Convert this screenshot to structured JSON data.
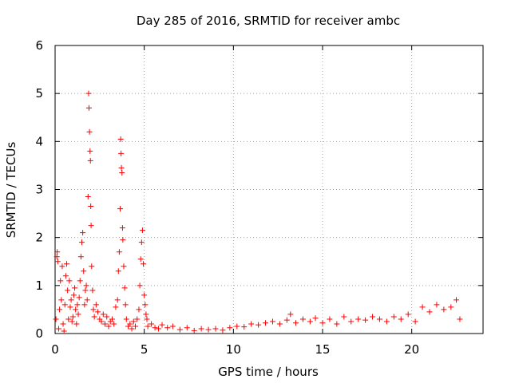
{
  "chart_data": {
    "type": "scatter",
    "title": "Day 285 of 2016, SRMTID for receiver ambc",
    "xlabel": "GPS time / hours",
    "ylabel": "SRMTID / TECUs",
    "xlim": [
      0,
      24
    ],
    "ylim": [
      0,
      6
    ],
    "xticks": [
      0,
      5,
      10,
      15,
      20
    ],
    "yticks": [
      0,
      1,
      2,
      3,
      4,
      5,
      6
    ],
    "grid": true,
    "marker": "+",
    "color": "#ff0000",
    "series": [
      {
        "name": "SRMTID",
        "points": [
          [
            0.05,
            0.3
          ],
          [
            0.1,
            1.6
          ],
          [
            0.12,
            1.7
          ],
          [
            0.15,
            1.5
          ],
          [
            0.2,
            0.1
          ],
          [
            0.25,
            0.5
          ],
          [
            0.3,
            1.1
          ],
          [
            0.35,
            0.7
          ],
          [
            0.4,
            1.4
          ],
          [
            0.45,
            0.2
          ],
          [
            0.5,
            0.05
          ],
          [
            0.55,
            0.6
          ],
          [
            0.6,
            1.2
          ],
          [
            0.65,
            1.45
          ],
          [
            0.7,
            0.9
          ],
          [
            0.75,
            0.3
          ],
          [
            0.8,
            1.1
          ],
          [
            0.85,
            0.55
          ],
          [
            0.9,
            0.7
          ],
          [
            0.95,
            0.25
          ],
          [
            1.0,
            0.35
          ],
          [
            1.05,
            0.8
          ],
          [
            1.1,
            0.95
          ],
          [
            1.15,
            0.5
          ],
          [
            1.2,
            0.2
          ],
          [
            1.25,
            0.6
          ],
          [
            1.3,
            0.4
          ],
          [
            1.35,
            0.75
          ],
          [
            1.4,
            1.1
          ],
          [
            1.45,
            1.6
          ],
          [
            1.5,
            1.9
          ],
          [
            1.55,
            2.1
          ],
          [
            1.6,
            1.3
          ],
          [
            1.65,
            0.6
          ],
          [
            1.7,
            0.9
          ],
          [
            1.75,
            1.0
          ],
          [
            1.8,
            0.7
          ],
          [
            1.85,
            2.85
          ],
          [
            1.88,
            5.0
          ],
          [
            1.9,
            4.7
          ],
          [
            1.93,
            4.2
          ],
          [
            1.96,
            3.8
          ],
          [
            1.98,
            3.6
          ],
          [
            2.0,
            2.65
          ],
          [
            2.02,
            2.25
          ],
          [
            2.05,
            1.4
          ],
          [
            2.1,
            0.9
          ],
          [
            2.15,
            0.5
          ],
          [
            2.2,
            0.35
          ],
          [
            2.3,
            0.6
          ],
          [
            2.4,
            0.45
          ],
          [
            2.5,
            0.3
          ],
          [
            2.6,
            0.25
          ],
          [
            2.7,
            0.4
          ],
          [
            2.8,
            0.2
          ],
          [
            2.9,
            0.35
          ],
          [
            3.0,
            0.15
          ],
          [
            3.1,
            0.25
          ],
          [
            3.2,
            0.3
          ],
          [
            3.3,
            0.2
          ],
          [
            3.4,
            0.55
          ],
          [
            3.5,
            0.7
          ],
          [
            3.55,
            1.3
          ],
          [
            3.6,
            1.7
          ],
          [
            3.65,
            2.6
          ],
          [
            3.68,
            4.05
          ],
          [
            3.7,
            3.75
          ],
          [
            3.72,
            3.45
          ],
          [
            3.75,
            3.35
          ],
          [
            3.78,
            2.2
          ],
          [
            3.8,
            1.95
          ],
          [
            3.85,
            1.4
          ],
          [
            3.9,
            0.95
          ],
          [
            3.95,
            0.6
          ],
          [
            4.0,
            0.3
          ],
          [
            4.1,
            0.15
          ],
          [
            4.2,
            0.2
          ],
          [
            4.3,
            0.1
          ],
          [
            4.4,
            0.25
          ],
          [
            4.5,
            0.15
          ],
          [
            4.6,
            0.3
          ],
          [
            4.7,
            0.5
          ],
          [
            4.75,
            1.0
          ],
          [
            4.8,
            1.55
          ],
          [
            4.85,
            1.9
          ],
          [
            4.9,
            2.15
          ],
          [
            4.95,
            1.45
          ],
          [
            5.0,
            0.8
          ],
          [
            5.05,
            0.6
          ],
          [
            5.1,
            0.4
          ],
          [
            5.15,
            0.3
          ],
          [
            5.2,
            0.15
          ],
          [
            5.4,
            0.2
          ],
          [
            5.6,
            0.12
          ],
          [
            5.8,
            0.1
          ],
          [
            6.0,
            0.18
          ],
          [
            6.3,
            0.12
          ],
          [
            6.6,
            0.15
          ],
          [
            7.0,
            0.08
          ],
          [
            7.4,
            0.12
          ],
          [
            7.8,
            0.06
          ],
          [
            8.2,
            0.1
          ],
          [
            8.6,
            0.08
          ],
          [
            9.0,
            0.1
          ],
          [
            9.4,
            0.07
          ],
          [
            9.8,
            0.12
          ],
          [
            10.2,
            0.15
          ],
          [
            10.6,
            0.14
          ],
          [
            11.0,
            0.2
          ],
          [
            11.4,
            0.18
          ],
          [
            11.8,
            0.22
          ],
          [
            12.2,
            0.25
          ],
          [
            12.6,
            0.2
          ],
          [
            13.0,
            0.28
          ],
          [
            13.2,
            0.4
          ],
          [
            13.5,
            0.22
          ],
          [
            13.9,
            0.3
          ],
          [
            14.3,
            0.25
          ],
          [
            14.6,
            0.32
          ],
          [
            15.0,
            0.22
          ],
          [
            15.4,
            0.3
          ],
          [
            15.8,
            0.2
          ],
          [
            16.2,
            0.35
          ],
          [
            16.6,
            0.25
          ],
          [
            17.0,
            0.3
          ],
          [
            17.4,
            0.28
          ],
          [
            17.8,
            0.35
          ],
          [
            18.2,
            0.3
          ],
          [
            18.6,
            0.25
          ],
          [
            19.0,
            0.35
          ],
          [
            19.4,
            0.3
          ],
          [
            19.8,
            0.4
          ],
          [
            20.2,
            0.25
          ],
          [
            20.6,
            0.55
          ],
          [
            21.0,
            0.45
          ],
          [
            21.4,
            0.6
          ],
          [
            21.8,
            0.5
          ],
          [
            22.2,
            0.55
          ],
          [
            22.5,
            0.7
          ],
          [
            22.7,
            0.3
          ]
        ]
      }
    ]
  }
}
